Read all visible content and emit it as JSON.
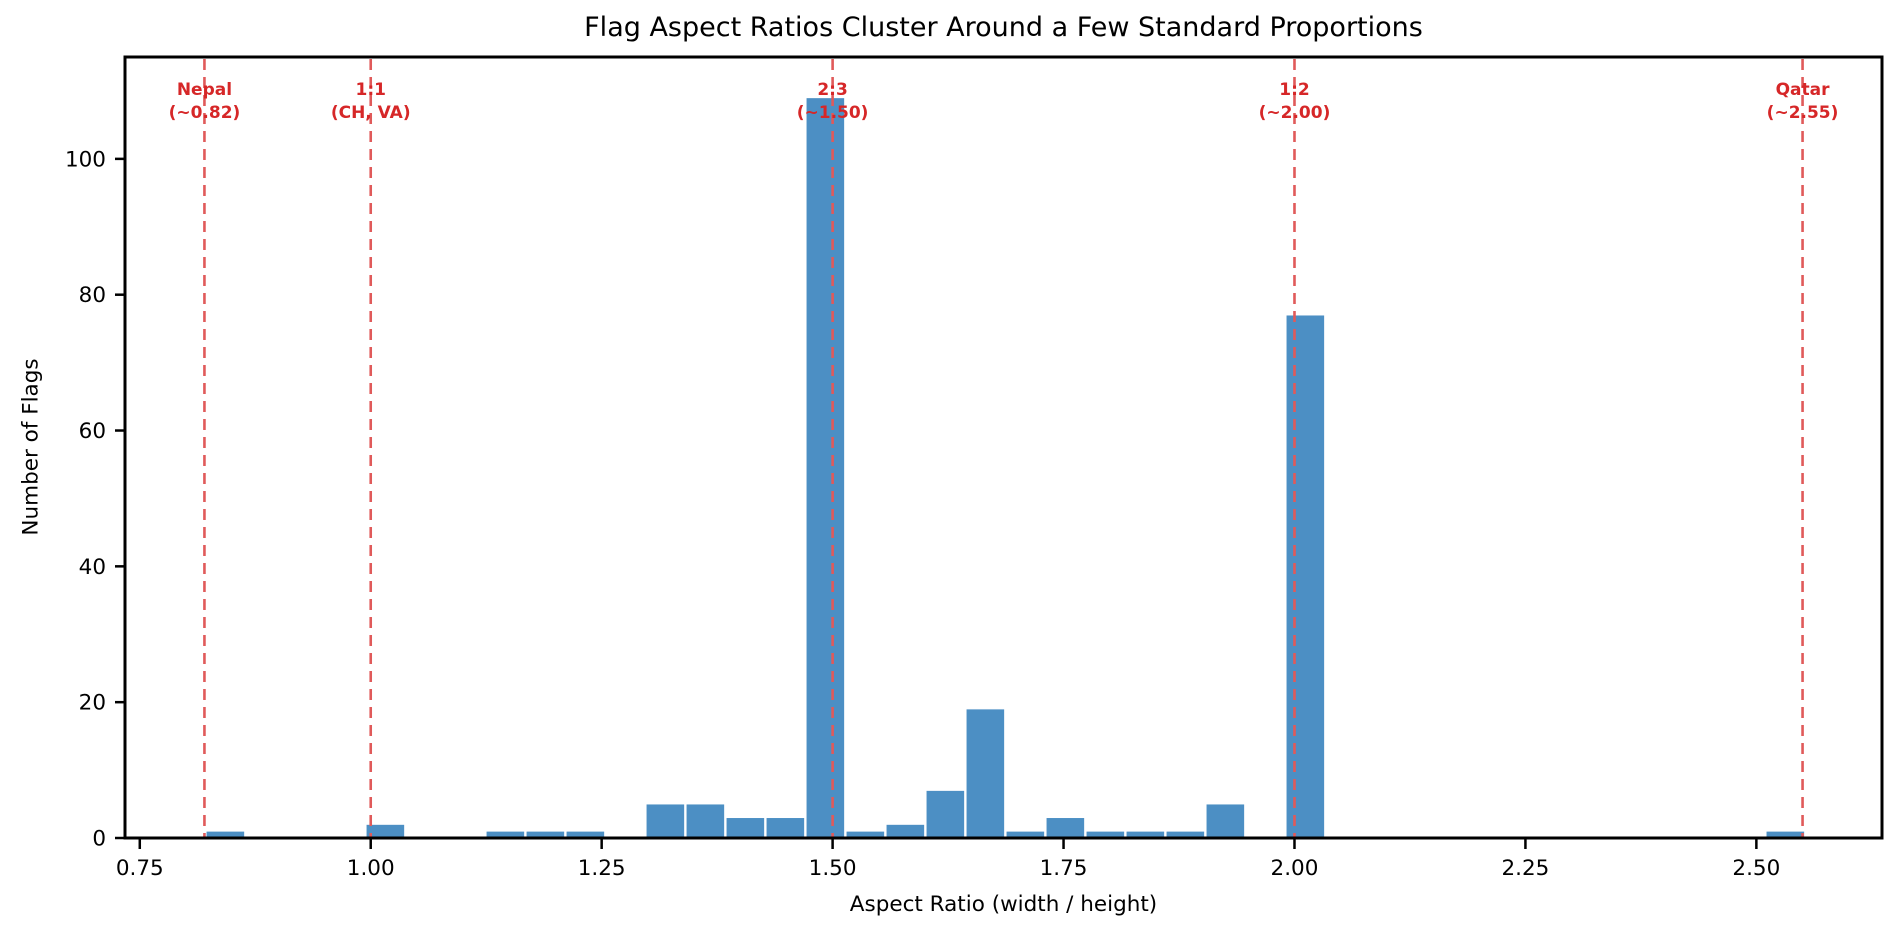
{
  "chart_data": {
    "type": "bar",
    "subtype": "histogram",
    "title": "Flag Aspect Ratios Cluster Around a Few Standard Proportions",
    "xlabel": "Aspect Ratio (width / height)",
    "ylabel": "Number of Flags",
    "xlim": [
      0.734,
      2.636
    ],
    "ylim": [
      0,
      115
    ],
    "grid": false,
    "legend": false,
    "x_ticks": [
      {
        "value": 0.75,
        "label": "0.75"
      },
      {
        "value": 1.0,
        "label": "1.00"
      },
      {
        "value": 1.25,
        "label": "1.25"
      },
      {
        "value": 1.5,
        "label": "1.50"
      },
      {
        "value": 1.75,
        "label": "1.75"
      },
      {
        "value": 2.0,
        "label": "2.00"
      },
      {
        "value": 2.25,
        "label": "2.25"
      },
      {
        "value": 2.5,
        "label": "2.50"
      }
    ],
    "y_ticks": [
      {
        "value": 0,
        "label": "0"
      },
      {
        "value": 20,
        "label": "20"
      },
      {
        "value": 40,
        "label": "40"
      },
      {
        "value": 60,
        "label": "60"
      },
      {
        "value": 80,
        "label": "80"
      },
      {
        "value": 100,
        "label": "100"
      }
    ],
    "bins": {
      "start": 0.821,
      "width": 0.0433,
      "counts": [
        1,
        0,
        0,
        0,
        2,
        0,
        0,
        1,
        1,
        1,
        0,
        5,
        5,
        3,
        3,
        109,
        1,
        2,
        7,
        19,
        1,
        3,
        1,
        1,
        1,
        5,
        0,
        77,
        0,
        0,
        0,
        0,
        0,
        0,
        0,
        0,
        0,
        0,
        0,
        1
      ]
    },
    "reference_lines": [
      {
        "x": 0.82,
        "label": "Nepal",
        "sublabel": "(~0.82)"
      },
      {
        "x": 1.0,
        "label": "1:1",
        "sublabel": "(CH, VA)"
      },
      {
        "x": 1.5,
        "label": "2:3",
        "sublabel": "(~1.50)"
      },
      {
        "x": 2.0,
        "label": "1:2",
        "sublabel": "(~2.00)"
      },
      {
        "x": 2.55,
        "label": "Qatar",
        "sublabel": "(~2.55)"
      }
    ],
    "colors": {
      "bar": "#4c8fc4",
      "bar_edge": "#ffffff",
      "reference_line": "#e05a5a",
      "annotation_text": "#d62728",
      "spine": "#000000",
      "text": "#000000",
      "background": "#ffffff"
    }
  }
}
